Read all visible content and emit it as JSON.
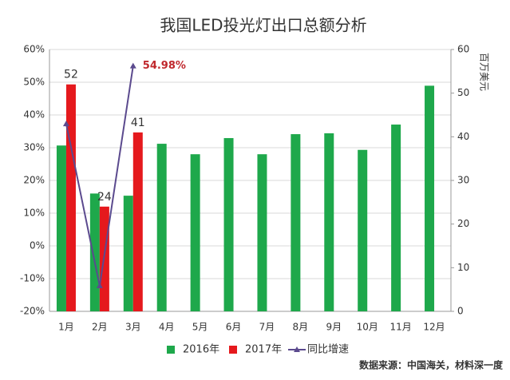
{
  "chart_data": {
    "type": "bar",
    "title": "我国LED投光灯出口总额分析",
    "y2_label": "百万美元",
    "source": "数据来源：中国海关，材料深一度",
    "categories": [
      "1月",
      "2月",
      "3月",
      "4月",
      "5月",
      "6月",
      "7月",
      "8月",
      "9月",
      "10月",
      "11月",
      "12月"
    ],
    "series": [
      {
        "name": "2016年",
        "color": "#1ea84b",
        "axis": "y2",
        "values": [
          38,
          27,
          26.5,
          38.4,
          36,
          39.7,
          36,
          40.6,
          40.8,
          37,
          42.8,
          51.7
        ]
      },
      {
        "name": "2017年",
        "color": "#e5191d",
        "axis": "y2",
        "values": [
          52,
          24,
          41,
          null,
          null,
          null,
          null,
          null,
          null,
          null,
          null,
          null
        ],
        "show_labels": true
      },
      {
        "name": "同比增速",
        "color": "#5b4a8e",
        "type": "line",
        "values": [
          37.3,
          -12.2,
          54.98,
          null,
          null,
          null,
          null,
          null,
          null,
          null,
          null,
          null
        ],
        "value_labels": [
          null,
          null,
          "54.98%",
          null,
          null,
          null,
          null,
          null,
          null,
          null,
          null,
          null
        ]
      }
    ],
    "ylim": [
      -20,
      60
    ],
    "yticks": [
      {
        "value": -20,
        "label": "-20%"
      },
      {
        "value": -10,
        "label": "-10%"
      },
      {
        "value": 0,
        "label": "0%"
      },
      {
        "value": 10,
        "label": "10%"
      },
      {
        "value": 20,
        "label": "20%"
      },
      {
        "value": 30,
        "label": "30%"
      },
      {
        "value": 40,
        "label": "40%"
      },
      {
        "value": 50,
        "label": "50%"
      },
      {
        "value": 60,
        "label": "60%"
      }
    ],
    "y2lim": [
      0,
      60
    ],
    "y2ticks": [
      0,
      10,
      20,
      30,
      40,
      50,
      60
    ],
    "grid": true,
    "legend": "bottom"
  }
}
